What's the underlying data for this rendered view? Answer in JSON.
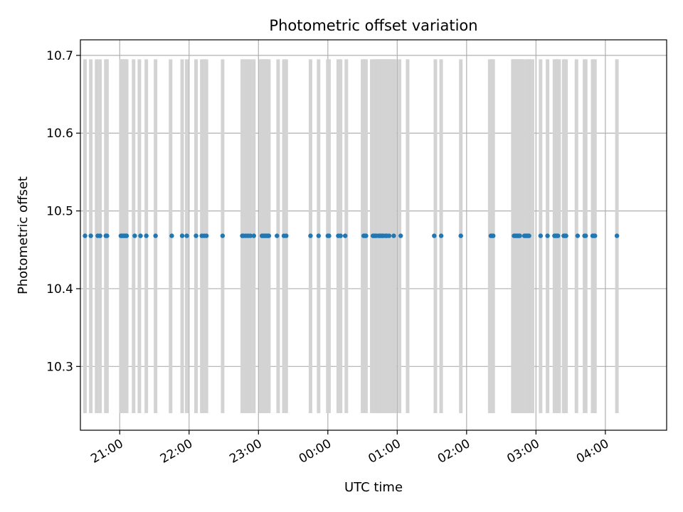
{
  "chart_data": {
    "type": "scatter",
    "title": "Photometric offset variation",
    "xlabel": "UTC time",
    "ylabel": "Photometric offset",
    "xlim": [
      "20:26",
      "04:53"
    ],
    "ylim": [
      10.218,
      10.72
    ],
    "grid": true,
    "x_ticks": [
      "21:00",
      "22:00",
      "23:00",
      "00:00",
      "01:00",
      "02:00",
      "03:00",
      "04:00"
    ],
    "y_ticks": [
      "10.3",
      "10.4",
      "10.5",
      "10.6",
      "10.7"
    ],
    "colors": {
      "points": "#1f77b4",
      "exposure_spans": "#d3d3d3",
      "grid": "#b0b0b0"
    },
    "exposure_spans": {
      "ymin": 10.24,
      "ymax": 10.695,
      "times": [
        "20:30",
        "20:35",
        "20:40",
        "20:43",
        "20:48",
        "20:49",
        "21:01",
        "21:02",
        "21:03",
        "21:04",
        "21:05",
        "21:06",
        "21:12",
        "21:17",
        "21:23",
        "21:31",
        "21:44",
        "21:54",
        "21:58",
        "22:06",
        "22:11",
        "22:13",
        "22:15",
        "22:29",
        "22:46",
        "22:47",
        "22:49",
        "22:51",
        "22:53",
        "22:56",
        "23:02",
        "23:03",
        "23:04",
        "23:05",
        "23:06",
        "23:07",
        "23:08",
        "23:09",
        "23:17",
        "23:22",
        "23:24",
        "23:45",
        "23:52",
        "24:00",
        "24:01",
        "24:09",
        "24:11",
        "24:16",
        "24:30",
        "24:31",
        "24:32",
        "24:33",
        "24:38",
        "24:40",
        "24:41",
        "24:42",
        "24:43",
        "24:44",
        "24:45",
        "24:46",
        "24:47",
        "24:48",
        "24:49",
        "24:50",
        "24:51",
        "24:52",
        "24:53",
        "24:54",
        "24:55",
        "24:56",
        "24:57",
        "24:58",
        "25:02",
        "25:09",
        "25:33",
        "25:38",
        "25:55",
        "26:20",
        "26:21",
        "26:22",
        "26:23",
        "26:40",
        "26:41",
        "26:42",
        "26:43",
        "26:44",
        "26:45",
        "26:46",
        "26:47",
        "26:48",
        "26:49",
        "26:52",
        "26:53",
        "26:54",
        "26:55",
        "26:56",
        "26:57",
        "27:04",
        "27:10",
        "27:16",
        "27:17",
        "27:18",
        "27:19",
        "27:20",
        "27:24",
        "27:25",
        "27:26",
        "27:35",
        "27:42",
        "27:43",
        "27:49",
        "27:50",
        "27:51",
        "28:10"
      ]
    },
    "series": [
      {
        "y": 10.468,
        "x": [
          "20:30",
          "20:35",
          "20:41",
          "20:43",
          "20:48",
          "20:49",
          "21:01",
          "21:02",
          "21:03",
          "21:04",
          "21:05",
          "21:06",
          "21:13",
          "21:18",
          "21:23",
          "21:31",
          "21:45",
          "21:54",
          "21:58",
          "22:06",
          "22:11",
          "22:13",
          "22:15",
          "22:29",
          "22:46",
          "22:47",
          "22:49",
          "22:51",
          "22:53",
          "22:56",
          "23:03",
          "23:04",
          "23:05",
          "23:06",
          "23:07",
          "23:08",
          "23:09",
          "23:16",
          "23:22",
          "23:24",
          "23:45",
          "23:52",
          "24:00",
          "24:01",
          "24:09",
          "24:11",
          "24:15",
          "24:31",
          "24:32",
          "24:33",
          "24:39",
          "24:40",
          "24:41",
          "24:42",
          "24:44",
          "24:45",
          "24:46",
          "24:47",
          "24:48",
          "24:50",
          "24:51",
          "24:53",
          "24:57",
          "25:03",
          "25:32",
          "25:38",
          "25:55",
          "26:21",
          "26:22",
          "26:23",
          "26:41",
          "26:42",
          "26:43",
          "26:44",
          "26:45",
          "26:46",
          "26:50",
          "26:51",
          "26:52",
          "26:53",
          "26:54",
          "27:04",
          "27:10",
          "27:16",
          "27:17",
          "27:18",
          "27:19",
          "27:24",
          "27:25",
          "27:26",
          "27:36",
          "27:42",
          "27:43",
          "27:49",
          "27:50",
          "27:51",
          "28:10"
        ]
      }
    ]
  }
}
